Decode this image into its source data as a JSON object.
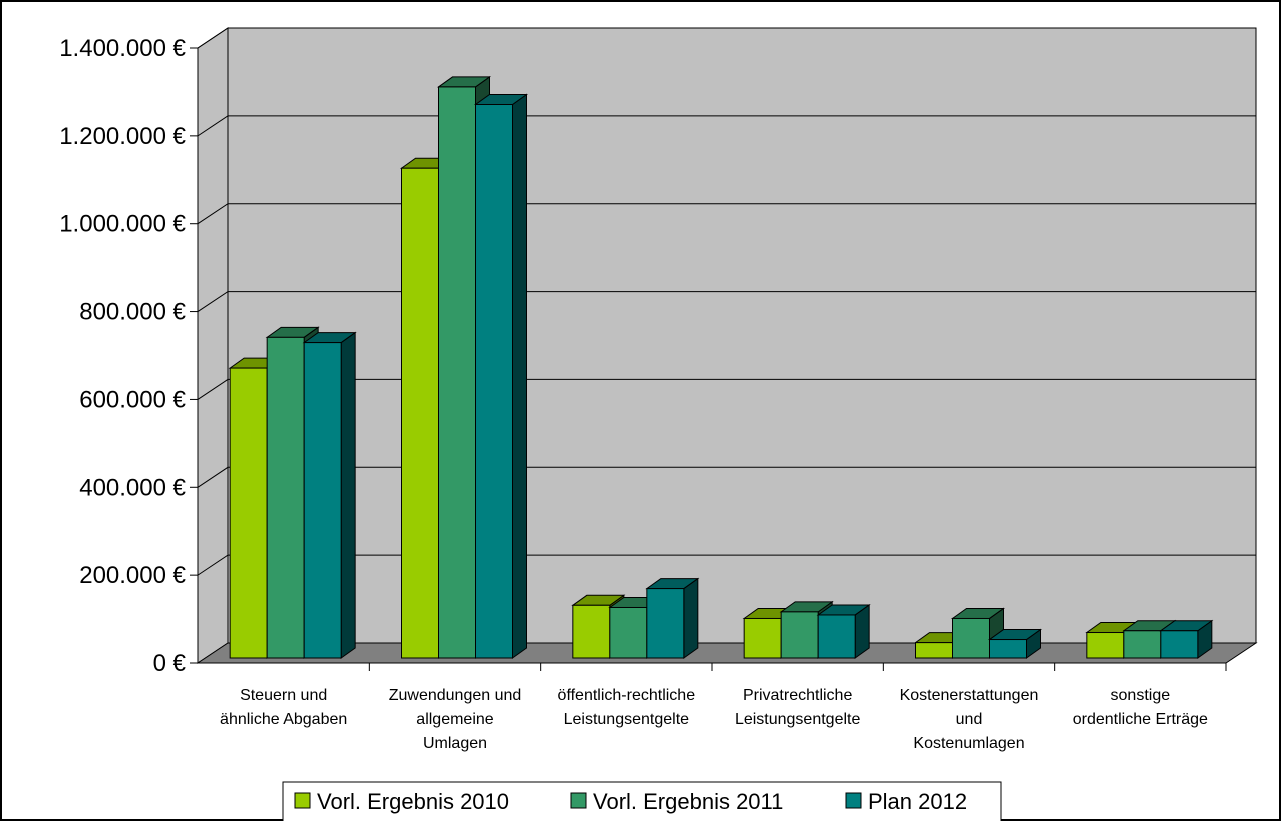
{
  "chart_data": {
    "type": "bar",
    "style": "3d-clustered-column",
    "categories": [
      [
        "Steuern und",
        "ähnliche Abgaben"
      ],
      [
        "Zuwendungen und",
        "allgemeine",
        "Umlagen"
      ],
      [
        "öffentlich-rechtliche",
        "Leistungsentgelte"
      ],
      [
        "Privatrechtliche",
        "Leistungsentgelte"
      ],
      [
        "Kostenerstattungen",
        "und",
        "Kostenumlagen"
      ],
      [
        "sonstige",
        "ordentliche Erträge"
      ]
    ],
    "series": [
      {
        "name": "Vorl. Ergebnis 2010",
        "color": "#99cc00",
        "values": [
          660000,
          1115000,
          120000,
          90000,
          35000,
          58000
        ]
      },
      {
        "name": "Vorl. Ergebnis 2011",
        "color": "#339966",
        "values": [
          730000,
          1300000,
          115000,
          105000,
          90000,
          62000
        ]
      },
      {
        "name": "Plan 2012",
        "color": "#008080",
        "values": [
          718000,
          1260000,
          158000,
          98000,
          42000,
          62000
        ]
      }
    ],
    "ylim": [
      0,
      1400000
    ],
    "yticks": [
      0,
      200000,
      400000,
      600000,
      800000,
      1000000,
      1200000,
      1400000
    ],
    "ytick_labels": [
      "0 €",
      "200.000 €",
      "400.000 €",
      "600.000 €",
      "800.000 €",
      "1.000.000 €",
      "1.200.000 €",
      "1.400.000 €"
    ],
    "grid": true,
    "legend_position": "bottom",
    "wall_color": "#c0c0c0",
    "floor_color": "#808080"
  }
}
